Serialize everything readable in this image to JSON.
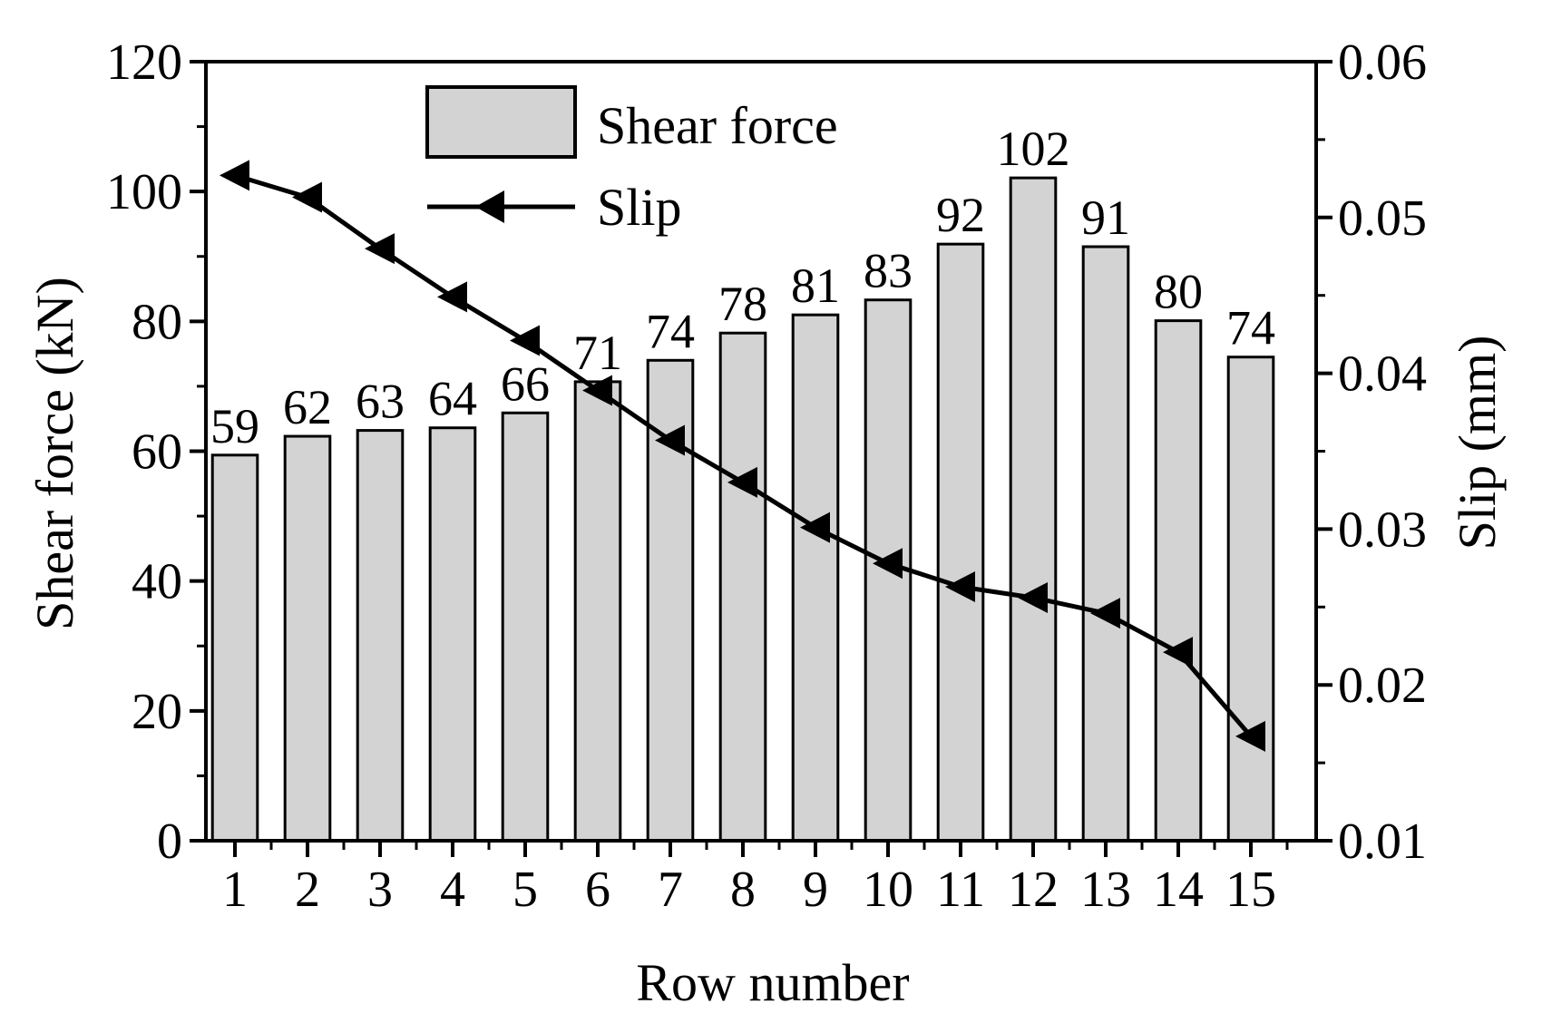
{
  "chart_data": {
    "type": "bar",
    "xlabel": "Row number",
    "ylabel": "Shear force (kN)",
    "y2label": "Slip (mm)",
    "categories": [
      "1",
      "2",
      "3",
      "4",
      "5",
      "6",
      "7",
      "8",
      "9",
      "10",
      "11",
      "12",
      "13",
      "14",
      "15"
    ],
    "x_ticks": [
      "1",
      "2",
      "3",
      "4",
      "5",
      "6",
      "7",
      "8",
      "9",
      "10",
      "11",
      "12",
      "13",
      "14",
      "15"
    ],
    "ylim": [
      0,
      120
    ],
    "y_ticks": [
      "0",
      "20",
      "40",
      "60",
      "80",
      "100",
      "120"
    ],
    "y2lim": [
      0.01,
      0.06
    ],
    "y2_ticks": [
      "0.01",
      "0.02",
      "0.03",
      "0.04",
      "0.05",
      "0.06"
    ],
    "series": [
      {
        "name": "Shear force",
        "type": "bar",
        "axis": "left",
        "values": [
          59.4,
          62.3,
          63.2,
          63.6,
          65.9,
          70.7,
          74.0,
          78.2,
          81.0,
          83.3,
          91.9,
          102.1,
          91.5,
          80.1,
          74.5
        ],
        "labels": [
          "59",
          "62",
          "63",
          "64",
          "66",
          "71",
          "74",
          "78",
          "81",
          "83",
          "92",
          "102",
          "91",
          "80",
          "74"
        ],
        "color": "#d3d3d3"
      },
      {
        "name": "Slip",
        "type": "line",
        "axis": "right",
        "marker": "left-triangle",
        "values": [
          0.0527,
          0.0513,
          0.048,
          0.0449,
          0.0421,
          0.0389,
          0.0357,
          0.033,
          0.0301,
          0.0278,
          0.0263,
          0.0256,
          0.0246,
          0.0221,
          0.0167
        ],
        "color": "#000000"
      }
    ],
    "legend": {
      "position": "top-center"
    },
    "grid": false
  }
}
